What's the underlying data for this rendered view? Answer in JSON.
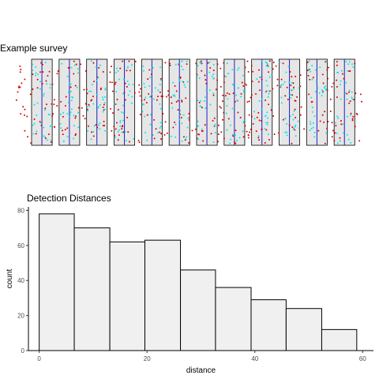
{
  "panels": {
    "survey_title": "Example survey",
    "histogram_title": "Detection Distances"
  },
  "colors": {
    "strip_fill": "#e6e6e6",
    "transect_line": "#1f1fbf",
    "detected": "#00e5ee",
    "undetected": "#dd0000",
    "bar_fill": "#f0f0f0",
    "bar_stroke": "#000000",
    "axis": "#000000"
  },
  "chart_data": [
    {
      "type": "scatter",
      "title": "Example survey",
      "transects": 12,
      "series": [],
      "xlabel": "",
      "ylabel": "",
      "grid": false,
      "legend": "none"
    },
    {
      "type": "bar",
      "title": "Detection Distances",
      "xlabel": "distance",
      "ylabel": "count",
      "bins": [
        [
          0,
          6.5
        ],
        [
          6.5,
          13.1
        ],
        [
          13.1,
          19.6
        ],
        [
          19.6,
          26.2
        ],
        [
          26.2,
          32.7
        ],
        [
          32.7,
          39.3
        ],
        [
          39.3,
          45.8
        ],
        [
          45.8,
          52.4
        ],
        [
          52.4,
          58.9
        ]
      ],
      "values": [
        78,
        70,
        62,
        63,
        46,
        36,
        29,
        24,
        12
      ],
      "xlim": [
        -2,
        62
      ],
      "ylim": [
        0,
        82
      ],
      "x_ticks": [
        0,
        20,
        40,
        60
      ],
      "y_ticks": [
        0,
        20,
        40,
        60,
        80
      ],
      "grid": false,
      "legend": "none"
    }
  ]
}
